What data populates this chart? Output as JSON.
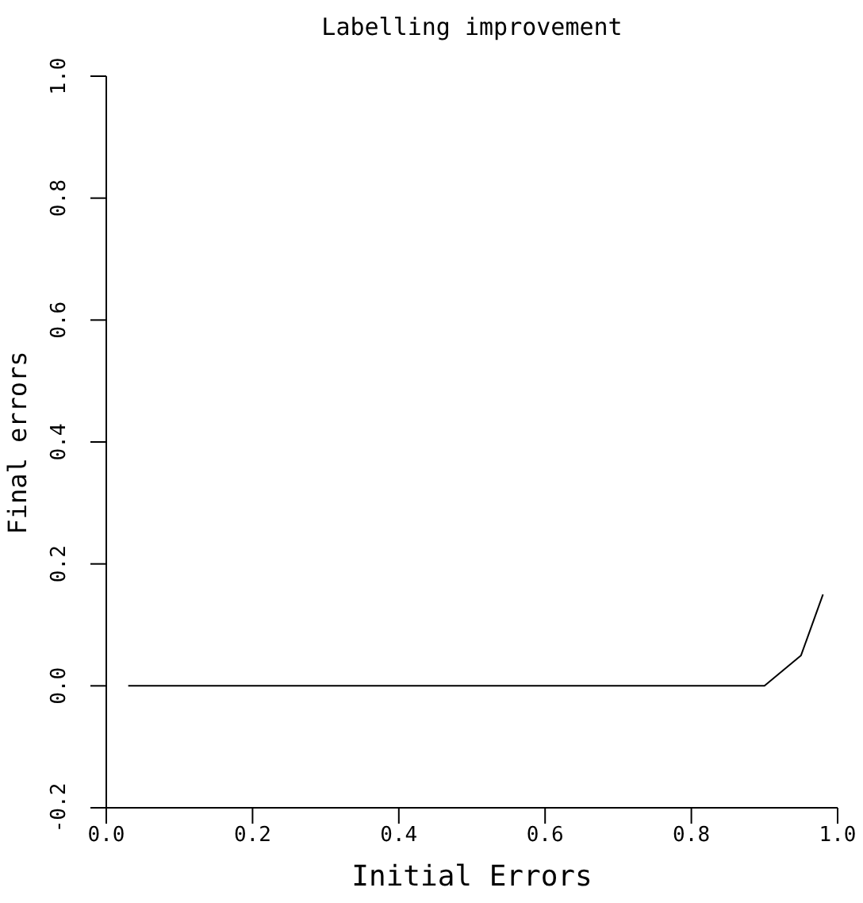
{
  "chart_data": {
    "type": "line",
    "title": "Labelling improvement",
    "xlabel": "Initial Errors",
    "ylabel": "Final errors",
    "x": [
      0.03,
      0.9,
      0.95,
      0.98
    ],
    "series": [
      {
        "color": "#000000",
        "values": [
          0,
          0,
          0.05,
          0.15
        ]
      }
    ],
    "xlim": [
      0,
      1
    ],
    "xticks": [
      {
        "value": 0,
        "label": "0.0"
      },
      0.2,
      0.4,
      0.6,
      0.8,
      {
        "value": 1,
        "label": "1.0"
      }
    ],
    "ylim": [
      -0.2,
      1
    ],
    "yticks": [
      -0.2,
      {
        "value": 0,
        "label": "0.0"
      },
      0.2,
      0.4,
      0.6,
      0.8,
      {
        "value": 1,
        "label": "1.0"
      }
    ],
    "grid": false,
    "legend": false,
    "marker": "none",
    "line_style": "solid"
  }
}
